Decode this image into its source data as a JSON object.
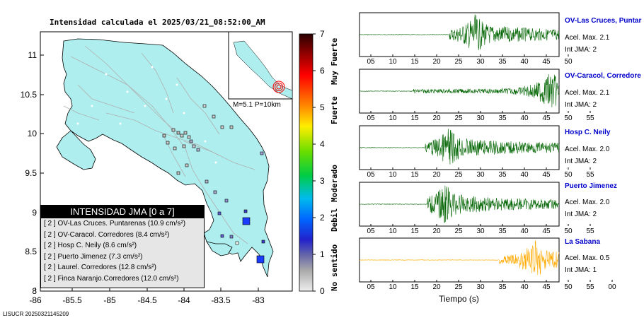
{
  "map": {
    "title": "Intensidad calculada el 2025/03/21_08:52:00_AM",
    "y_ticks": [
      "11",
      "10.5",
      "10",
      "9.5",
      "9",
      "8.5",
      "8"
    ],
    "x_ticks": [
      "-86",
      "-85.5",
      "-85",
      "-84.5",
      "-84",
      "-83.5",
      "-83"
    ],
    "inset_label": "M=5.1 P=10km",
    "footer": "LISUCR 20250321145209",
    "colors": {
      "land": "#aeeeee",
      "roads": "#b0b0b0",
      "frame": "#000000"
    }
  },
  "colorbar": {
    "ticks": [
      "7",
      "6",
      "5",
      "4",
      "3",
      "2",
      "1",
      "0"
    ],
    "categories": [
      "Muy Fuerte",
      "Fuerte",
      "Moderado",
      "Debil",
      "No sentido"
    ]
  },
  "legend": {
    "title": "INTENSIDAD JMA [0 a 7]",
    "rows": [
      "[ 2 ]  OV-Las Cruces. Puntarenas (10.9 cm/s²)",
      "[ 2 ]  OV-Caracol. Corredores (8.4 cm/s²)",
      "[ 2 ]  Hosp C. Neily (8.6 cm/s²)",
      "[ 2 ]  Puerto Jimenez (7.3 cm/s²)",
      "[ 2 ]  Laurel. Corredores (12.8 cm/s²)",
      "[ 2 ]  Finca Naranjo.Corredores (12.0 cm/s²)"
    ]
  },
  "waveforms": {
    "x_label": "Tiempo (s)",
    "panels": [
      {
        "name": "OV-Las Cruces, Puntar",
        "accel": "Acel. Max. 2.1",
        "jma": "Int JMA: 2",
        "color": "#006400",
        "ticks": [
          "05",
          "10",
          "15",
          "20",
          "25",
          "30",
          "35",
          "40",
          "45",
          "50"
        ],
        "onset": 0.45,
        "peak": 0.58
      },
      {
        "name": "OV-Caracol, Corredore",
        "accel": "Acel. Max. 2.1",
        "jma": "Int JMA: 2",
        "color": "#006400",
        "ticks": [
          "05",
          "10",
          "15",
          "20",
          "25",
          "30",
          "35",
          "40",
          "45",
          "50",
          "55"
        ],
        "onset": 0.27,
        "peak": 0.96
      },
      {
        "name": "Hosp C. Neily",
        "accel": "Acel. Max. 2.0",
        "jma": "Int JMA: 2",
        "color": "#006400",
        "ticks": [
          "05",
          "10",
          "15",
          "20",
          "25",
          "30",
          "35",
          "40",
          "45",
          "50",
          "55"
        ],
        "onset": 0.33,
        "peak": 0.45
      },
      {
        "name": "Puerto Jimenez",
        "accel": "Acel. Max. 2.0",
        "jma": "Int JMA: 2",
        "color": "#006400",
        "ticks": [
          "05",
          "10",
          "15",
          "20",
          "25",
          "30",
          "35",
          "40",
          "45",
          "50",
          "55"
        ],
        "onset": 0.34,
        "peak": 0.43
      },
      {
        "name": "La Sabana",
        "accel": "Acel. Max. 0.5",
        "jma": "Int JMA: 1",
        "color": "#ffaa00",
        "ticks": [
          "05",
          "10",
          "15",
          "20",
          "25",
          "30",
          "35",
          "40",
          "45",
          "50",
          "55",
          "00"
        ],
        "onset": 0.7,
        "peak": 0.88
      }
    ]
  }
}
